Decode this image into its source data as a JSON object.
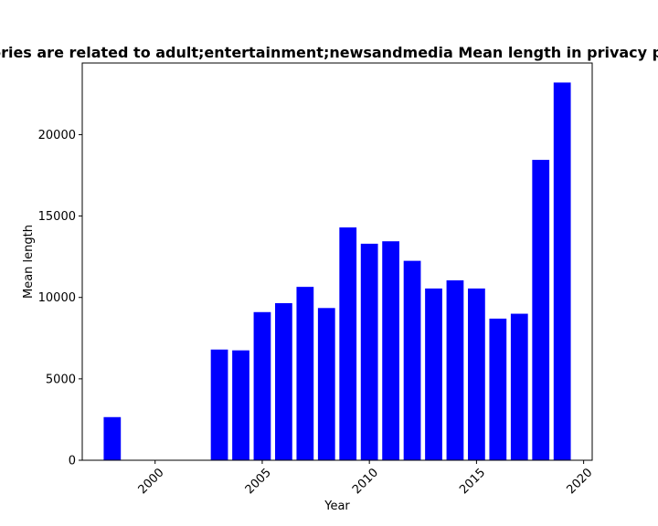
{
  "chart_data": {
    "type": "bar",
    "title": "Categories are related to adult;entertainment;newsandmedia Mean length in privacy policies",
    "xlabel": "Year",
    "ylabel": "Mean length",
    "x": [
      1998,
      2003,
      2004,
      2005,
      2006,
      2007,
      2008,
      2009,
      2010,
      2011,
      2012,
      2013,
      2014,
      2015,
      2016,
      2017,
      2018,
      2019
    ],
    "values": [
      2650,
      6800,
      6750,
      9100,
      9650,
      10650,
      9350,
      14300,
      13300,
      13450,
      12250,
      10550,
      11050,
      10550,
      8700,
      9000,
      18450,
      23200
    ],
    "xlim": [
      1996.6,
      2020.4
    ],
    "ylim": [
      0,
      24400
    ],
    "xticks": [
      2000,
      2005,
      2010,
      2015,
      2020
    ],
    "yticks": [
      0,
      5000,
      10000,
      15000,
      20000
    ],
    "bar_color": "#0000ff",
    "grid": false
  }
}
